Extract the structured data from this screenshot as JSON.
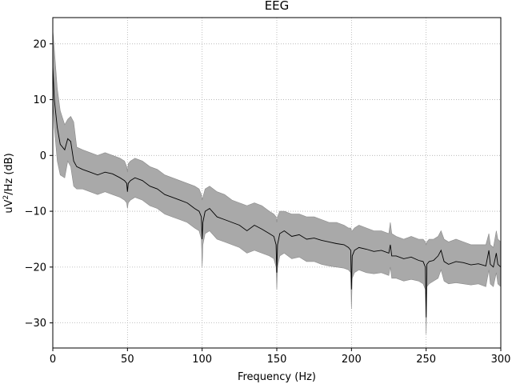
{
  "chart_data": {
    "type": "line",
    "title": "EEG",
    "xlabel": "Frequency (Hz)",
    "ylabel_main": "uV",
    "ylabel_sup": "2",
    "ylabel_rest": "/Hz (dB)",
    "xlim": [
      0,
      300
    ],
    "ylim": [
      -34.5,
      24.7
    ],
    "xticks": [
      0,
      50,
      100,
      150,
      200,
      250,
      300
    ],
    "yticks": [
      -30,
      -20,
      -10,
      0,
      10,
      20
    ],
    "ytick_labels": [
      "−30",
      "−20",
      "−10",
      "0",
      "10",
      "20"
    ],
    "grid": true,
    "band_color": "#a9a9a9",
    "line_color": "#000000",
    "series": [
      {
        "x": [
          0,
          1,
          3,
          5,
          8,
          10,
          12,
          14,
          16,
          20,
          25,
          30,
          35,
          40,
          45,
          48,
          49.5,
          50,
          50.5,
          52,
          55,
          60,
          65,
          70,
          75,
          80,
          85,
          90,
          95,
          98,
          99.5,
          100,
          100.5,
          102,
          105,
          110,
          115,
          120,
          125,
          130,
          135,
          140,
          145,
          148,
          149.5,
          150,
          150.5,
          152,
          155,
          160,
          165,
          170,
          175,
          180,
          185,
          190,
          195,
          198,
          199.5,
          200,
          200.5,
          202,
          205,
          210,
          215,
          220,
          225,
          226,
          227,
          230,
          235,
          240,
          245,
          248,
          249.5,
          250,
          250.5,
          252,
          255,
          258,
          260,
          262,
          265,
          270,
          275,
          280,
          285,
          290,
          292,
          293,
          295,
          297,
          298,
          300
        ],
        "mean": [
          16,
          10,
          5,
          2,
          1,
          3,
          2.5,
          -1,
          -2,
          -2.5,
          -3,
          -3.5,
          -3,
          -3.3,
          -4,
          -4.5,
          -5,
          -6.5,
          -5,
          -4.5,
          -4,
          -4.5,
          -5.5,
          -6,
          -7,
          -7.5,
          -8,
          -8.5,
          -9.5,
          -10,
          -11,
          -15,
          -12,
          -10,
          -9.5,
          -11,
          -11.5,
          -12,
          -12.5,
          -13.5,
          -12.5,
          -13.2,
          -14,
          -14.5,
          -16,
          -21,
          -16,
          -14,
          -13.5,
          -14.5,
          -14.2,
          -15,
          -14.8,
          -15.2,
          -15.5,
          -15.8,
          -16,
          -16.5,
          -17,
          -24,
          -18,
          -17,
          -16.5,
          -16.8,
          -17.2,
          -17,
          -17.5,
          -16,
          -18,
          -18,
          -18.5,
          -18.2,
          -18.8,
          -19,
          -20,
          -29,
          -19.5,
          -19,
          -18.8,
          -18,
          -17,
          -19,
          -19.5,
          -19,
          -19.2,
          -19.6,
          -19.4,
          -19.8,
          -17,
          -19.5,
          -20,
          -17.5,
          -19.5,
          -20
        ],
        "upper": [
          22.5,
          19,
          12,
          8,
          5.5,
          6.5,
          7,
          6,
          1.5,
          1,
          0.5,
          0,
          0.5,
          0,
          -0.5,
          -1,
          -2,
          -3,
          -1.5,
          -1,
          -0.5,
          -1,
          -2,
          -2.5,
          -3.5,
          -4,
          -4.5,
          -5,
          -5.5,
          -6,
          -7,
          -8,
          -7.5,
          -6,
          -5.5,
          -6.5,
          -7,
          -8,
          -8.5,
          -9,
          -8.5,
          -9,
          -10,
          -10.5,
          -11,
          -12,
          -11,
          -10,
          -10,
          -10.5,
          -10.5,
          -11,
          -11,
          -11.5,
          -12,
          -12,
          -12.5,
          -13,
          -13,
          -13.5,
          -13.5,
          -13,
          -12.5,
          -13,
          -13.5,
          -13.5,
          -14,
          -12,
          -14,
          -14.5,
          -15,
          -14.5,
          -15,
          -15,
          -15.5,
          -16,
          -15.5,
          -15,
          -15,
          -14.5,
          -13.5,
          -15,
          -15.5,
          -15,
          -15.5,
          -16,
          -16,
          -16,
          -14,
          -16,
          -16.5,
          -13.5,
          -15,
          -15.5
        ],
        "lower": [
          10,
          5,
          -1,
          -3.5,
          -4,
          -1,
          -2,
          -5.5,
          -6,
          -6,
          -6.5,
          -7,
          -6.5,
          -7,
          -7.5,
          -8,
          -8.5,
          -9.5,
          -8.5,
          -8,
          -7.5,
          -8,
          -9,
          -9.5,
          -10.5,
          -11,
          -11.5,
          -12,
          -13,
          -13.5,
          -15,
          -20,
          -16,
          -14,
          -13.5,
          -15,
          -15.5,
          -16,
          -16.5,
          -17.5,
          -17,
          -17.5,
          -18,
          -18.5,
          -20,
          -24,
          -20,
          -18,
          -17.5,
          -18.5,
          -18.2,
          -19,
          -19,
          -19.5,
          -19.8,
          -20,
          -20.2,
          -20.5,
          -21,
          -27.5,
          -22,
          -21,
          -20.5,
          -21,
          -21.2,
          -21,
          -21.5,
          -20,
          -22,
          -22,
          -22.5,
          -22.2,
          -22.5,
          -23,
          -24,
          -32,
          -23.5,
          -23,
          -22.5,
          -22,
          -20.5,
          -22.5,
          -23,
          -22.8,
          -23,
          -23.2,
          -23,
          -23.5,
          -20.5,
          -23,
          -23.5,
          -21,
          -23,
          -23.5
        ]
      }
    ]
  }
}
